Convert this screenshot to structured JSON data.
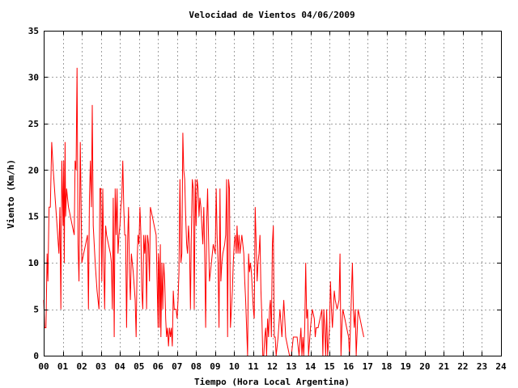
{
  "chart_data": {
    "type": "line",
    "title": "Velocidad de Vientos 04/06/2009",
    "xlabel": "Tiempo (Hora Local Argentina)",
    "ylabel": "Viento (Km/h)",
    "xlim": [
      0,
      24
    ],
    "ylim": [
      0,
      35
    ],
    "x_ticks": [
      0,
      1,
      2,
      3,
      4,
      5,
      6,
      7,
      8,
      9,
      10,
      11,
      12,
      13,
      14,
      15,
      16,
      17,
      18,
      19,
      20,
      21,
      22,
      23,
      24
    ],
    "x_tick_labels": [
      "00",
      "01",
      "02",
      "03",
      "04",
      "05",
      "06",
      "07",
      "08",
      "09",
      "10",
      "11",
      "12",
      "13",
      "14",
      "15",
      "16",
      "17",
      "18",
      "19",
      "20",
      "21",
      "22",
      "23",
      "24"
    ],
    "y_ticks": [
      0,
      5,
      10,
      15,
      20,
      25,
      30,
      35
    ],
    "y_tick_labels": [
      "0",
      "5",
      "10",
      "15",
      "20",
      "25",
      "30",
      "35"
    ],
    "grid": true,
    "series": [
      {
        "color": "#ff0000",
        "points": [
          [
            0.0,
            6
          ],
          [
            0.05,
            3
          ],
          [
            0.12,
            3
          ],
          [
            0.18,
            11
          ],
          [
            0.22,
            8
          ],
          [
            0.28,
            16
          ],
          [
            0.35,
            16
          ],
          [
            0.42,
            23
          ],
          [
            0.5,
            20
          ],
          [
            0.6,
            17
          ],
          [
            0.7,
            14
          ],
          [
            0.8,
            11
          ],
          [
            0.85,
            16
          ],
          [
            0.9,
            5
          ],
          [
            0.95,
            21
          ],
          [
            1.02,
            14
          ],
          [
            1.05,
            21
          ],
          [
            1.08,
            10
          ],
          [
            1.12,
            23
          ],
          [
            1.15,
            15
          ],
          [
            1.2,
            18
          ],
          [
            1.25,
            17
          ],
          [
            1.3,
            16
          ],
          [
            1.4,
            15
          ],
          [
            1.5,
            14
          ],
          [
            1.6,
            13
          ],
          [
            1.65,
            21
          ],
          [
            1.7,
            20
          ],
          [
            1.75,
            31
          ],
          [
            1.8,
            12
          ],
          [
            1.85,
            8
          ],
          [
            1.92,
            23
          ],
          [
            2.0,
            10
          ],
          [
            2.1,
            11
          ],
          [
            2.2,
            12
          ],
          [
            2.3,
            13
          ],
          [
            2.35,
            5
          ],
          [
            2.4,
            17
          ],
          [
            2.45,
            21
          ],
          [
            2.5,
            16
          ],
          [
            2.55,
            27
          ],
          [
            2.6,
            14
          ],
          [
            2.7,
            10
          ],
          [
            2.8,
            7
          ],
          [
            2.9,
            5
          ],
          [
            2.95,
            18
          ],
          [
            3.0,
            18
          ],
          [
            3.05,
            8
          ],
          [
            3.1,
            18
          ],
          [
            3.15,
            10
          ],
          [
            3.2,
            5
          ],
          [
            3.25,
            14
          ],
          [
            3.3,
            13
          ],
          [
            3.4,
            12
          ],
          [
            3.5,
            11
          ],
          [
            3.55,
            10
          ],
          [
            3.6,
            5
          ],
          [
            3.65,
            17
          ],
          [
            3.7,
            2
          ],
          [
            3.75,
            18
          ],
          [
            3.8,
            13
          ],
          [
            3.85,
            18
          ],
          [
            3.9,
            11
          ],
          [
            3.95,
            13
          ],
          [
            4.0,
            14
          ],
          [
            4.05,
            16
          ],
          [
            4.1,
            17
          ],
          [
            4.15,
            21
          ],
          [
            4.2,
            16
          ],
          [
            4.25,
            13
          ],
          [
            4.3,
            13
          ],
          [
            4.35,
            3
          ],
          [
            4.4,
            12
          ],
          [
            4.45,
            16
          ],
          [
            4.5,
            9
          ],
          [
            4.55,
            6
          ],
          [
            4.6,
            11
          ],
          [
            4.7,
            9
          ],
          [
            4.8,
            6
          ],
          [
            4.85,
            2
          ],
          [
            4.9,
            10
          ],
          [
            4.95,
            13
          ],
          [
            5.0,
            12
          ],
          [
            5.05,
            16
          ],
          [
            5.1,
            13
          ],
          [
            5.15,
            7
          ],
          [
            5.2,
            5
          ],
          [
            5.25,
            13
          ],
          [
            5.3,
            11
          ],
          [
            5.35,
            13
          ],
          [
            5.4,
            5
          ],
          [
            5.45,
            13
          ],
          [
            5.5,
            12
          ],
          [
            5.55,
            8
          ],
          [
            5.6,
            16
          ],
          [
            5.7,
            15
          ],
          [
            5.8,
            14
          ],
          [
            5.9,
            13
          ],
          [
            6.0,
            3
          ],
          [
            6.02,
            11
          ],
          [
            6.05,
            10
          ],
          [
            6.08,
            3
          ],
          [
            6.12,
            12
          ],
          [
            6.15,
            2
          ],
          [
            6.2,
            10
          ],
          [
            6.25,
            5
          ],
          [
            6.3,
            10
          ],
          [
            6.35,
            8
          ],
          [
            6.4,
            4
          ],
          [
            6.45,
            2
          ],
          [
            6.5,
            3
          ],
          [
            6.55,
            1
          ],
          [
            6.6,
            3
          ],
          [
            6.65,
            2
          ],
          [
            6.7,
            3
          ],
          [
            6.75,
            1
          ],
          [
            6.8,
            7
          ],
          [
            6.85,
            5
          ],
          [
            6.95,
            5
          ],
          [
            7.0,
            4
          ],
          [
            7.05,
            6
          ],
          [
            7.1,
            9
          ],
          [
            7.15,
            19
          ],
          [
            7.2,
            10
          ],
          [
            7.25,
            11
          ],
          [
            7.3,
            24
          ],
          [
            7.35,
            20
          ],
          [
            7.4,
            19
          ],
          [
            7.45,
            15
          ],
          [
            7.5,
            12
          ],
          [
            7.55,
            11
          ],
          [
            7.6,
            14
          ],
          [
            7.65,
            12
          ],
          [
            7.7,
            5
          ],
          [
            7.75,
            13
          ],
          [
            7.8,
            19
          ],
          [
            7.85,
            18
          ],
          [
            7.9,
            5
          ],
          [
            7.95,
            19
          ],
          [
            8.0,
            14
          ],
          [
            8.05,
            19
          ],
          [
            8.1,
            18
          ],
          [
            8.15,
            15
          ],
          [
            8.2,
            17
          ],
          [
            8.25,
            16
          ],
          [
            8.3,
            14
          ],
          [
            8.35,
            12
          ],
          [
            8.4,
            16
          ],
          [
            8.45,
            11
          ],
          [
            8.5,
            3
          ],
          [
            8.55,
            14
          ],
          [
            8.6,
            18
          ],
          [
            8.65,
            13
          ],
          [
            8.7,
            8
          ],
          [
            8.75,
            9
          ],
          [
            8.8,
            10
          ],
          [
            8.9,
            12
          ],
          [
            9.0,
            11
          ],
          [
            9.05,
            18
          ],
          [
            9.1,
            13
          ],
          [
            9.15,
            10
          ],
          [
            9.2,
            3
          ],
          [
            9.25,
            18
          ],
          [
            9.3,
            8
          ],
          [
            9.35,
            10
          ],
          [
            9.4,
            11
          ],
          [
            9.5,
            12
          ],
          [
            9.55,
            13
          ],
          [
            9.6,
            19
          ],
          [
            9.65,
            2
          ],
          [
            9.7,
            19
          ],
          [
            9.75,
            18
          ],
          [
            9.8,
            3
          ],
          [
            9.85,
            5
          ],
          [
            9.9,
            7
          ],
          [
            9.95,
            10
          ],
          [
            10.0,
            12
          ],
          [
            10.05,
            13
          ],
          [
            10.1,
            11
          ],
          [
            10.15,
            14
          ],
          [
            10.2,
            11
          ],
          [
            10.25,
            13
          ],
          [
            10.3,
            11
          ],
          [
            10.35,
            12
          ],
          [
            10.4,
            13
          ],
          [
            10.45,
            12
          ],
          [
            10.5,
            11
          ],
          [
            10.55,
            8
          ],
          [
            10.6,
            6
          ],
          [
            10.65,
            3
          ],
          [
            10.7,
            0
          ],
          [
            10.75,
            11
          ],
          [
            10.8,
            9
          ],
          [
            10.85,
            10
          ],
          [
            10.9,
            9
          ],
          [
            10.95,
            7
          ],
          [
            11.0,
            5
          ],
          [
            11.05,
            4
          ],
          [
            11.1,
            16
          ],
          [
            11.15,
            12
          ],
          [
            11.2,
            8
          ],
          [
            11.25,
            10
          ],
          [
            11.3,
            11
          ],
          [
            11.35,
            13
          ],
          [
            11.4,
            7
          ],
          [
            11.45,
            4
          ],
          [
            11.5,
            0
          ],
          [
            11.55,
            0
          ],
          [
            11.6,
            2
          ],
          [
            11.65,
            3
          ],
          [
            11.7,
            0
          ],
          [
            11.75,
            4
          ],
          [
            11.8,
            2
          ],
          [
            11.85,
            5
          ],
          [
            11.9,
            6
          ],
          [
            11.95,
            2
          ],
          [
            12.0,
            12
          ],
          [
            12.05,
            14
          ],
          [
            12.1,
            2
          ],
          [
            12.15,
            2
          ],
          [
            12.2,
            0
          ],
          [
            12.3,
            2
          ],
          [
            12.4,
            5
          ],
          [
            12.5,
            2
          ],
          [
            12.6,
            6
          ],
          [
            12.7,
            2
          ],
          [
            12.8,
            1
          ],
          [
            12.9,
            0
          ],
          [
            13.0,
            0
          ],
          [
            13.1,
            2
          ],
          [
            13.2,
            2
          ],
          [
            13.3,
            2
          ],
          [
            13.4,
            0
          ],
          [
            13.5,
            3
          ],
          [
            13.55,
            0
          ],
          [
            13.6,
            2
          ],
          [
            13.65,
            0
          ],
          [
            13.7,
            3
          ],
          [
            13.75,
            10
          ],
          [
            13.8,
            4
          ],
          [
            13.85,
            5
          ],
          [
            13.9,
            0
          ],
          [
            14.0,
            3
          ],
          [
            14.1,
            5
          ],
          [
            14.2,
            4
          ],
          [
            14.25,
            2
          ],
          [
            14.3,
            3
          ],
          [
            14.4,
            3
          ],
          [
            14.5,
            4
          ],
          [
            14.6,
            5
          ],
          [
            14.65,
            0
          ],
          [
            14.7,
            5
          ],
          [
            14.75,
            3
          ],
          [
            14.8,
            0
          ],
          [
            14.85,
            5
          ],
          [
            14.9,
            0
          ],
          [
            15.0,
            3
          ],
          [
            15.05,
            8
          ],
          [
            15.1,
            5
          ],
          [
            15.15,
            3
          ],
          [
            15.2,
            5
          ],
          [
            15.25,
            7
          ],
          [
            15.3,
            6
          ],
          [
            15.4,
            5
          ],
          [
            15.5,
            6
          ],
          [
            15.55,
            11
          ],
          [
            15.6,
            0
          ],
          [
            15.65,
            3
          ],
          [
            15.7,
            5
          ],
          [
            15.8,
            4
          ],
          [
            15.9,
            3
          ],
          [
            16.0,
            2
          ],
          [
            16.05,
            0
          ],
          [
            16.1,
            3
          ],
          [
            16.2,
            10
          ],
          [
            16.25,
            5
          ],
          [
            16.3,
            3
          ],
          [
            16.35,
            5
          ],
          [
            16.4,
            0
          ],
          [
            16.5,
            5
          ],
          [
            16.6,
            4
          ],
          [
            16.7,
            3
          ],
          [
            16.8,
            2
          ]
        ]
      }
    ]
  }
}
